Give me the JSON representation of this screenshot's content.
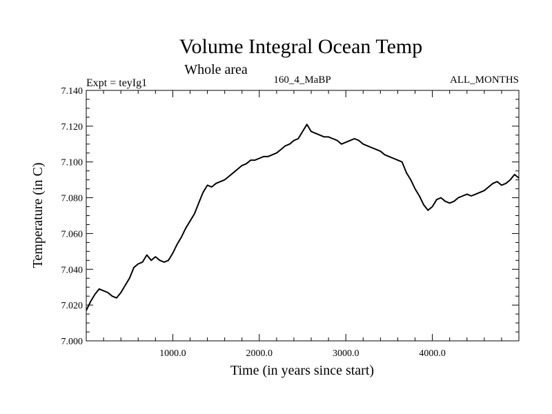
{
  "chart_data": {
    "type": "line",
    "title": "Volume Integral Ocean Temp",
    "subtitle": "Whole area",
    "header_left": "Expt = teyIg1",
    "header_center": "160_4_MaBP",
    "header_right": "ALL_MONTHS",
    "xlabel": "Time (in years since start)",
    "ylabel": "Temperature (in C)",
    "xlim": [
      0,
      5000
    ],
    "ylim": [
      7.0,
      7.14
    ],
    "x_ticks": [
      1000,
      2000,
      3000,
      4000
    ],
    "x_tick_labels": [
      "1000.0",
      "2000.0",
      "3000.0",
      "4000.0"
    ],
    "y_ticks": [
      7.0,
      7.02,
      7.04,
      7.06,
      7.08,
      7.1,
      7.12,
      7.14
    ],
    "y_tick_labels": [
      "7.000",
      "7.020",
      "7.040",
      "7.060",
      "7.080",
      "7.100",
      "7.120",
      "7.140"
    ],
    "grid": false,
    "line_color": "#000000",
    "series": [
      {
        "name": "Volume Integral Ocean Temp",
        "x": [
          0,
          50,
          100,
          150,
          200,
          250,
          300,
          350,
          400,
          450,
          500,
          550,
          600,
          650,
          700,
          750,
          800,
          850,
          900,
          950,
          1000,
          1050,
          1100,
          1150,
          1200,
          1250,
          1300,
          1350,
          1400,
          1450,
          1500,
          1550,
          1600,
          1650,
          1700,
          1750,
          1800,
          1850,
          1900,
          1950,
          2000,
          2050,
          2100,
          2150,
          2200,
          2250,
          2300,
          2350,
          2400,
          2450,
          2500,
          2550,
          2600,
          2650,
          2700,
          2750,
          2800,
          2850,
          2900,
          2950,
          3000,
          3050,
          3100,
          3150,
          3200,
          3250,
          3300,
          3350,
          3400,
          3450,
          3500,
          3550,
          3600,
          3650,
          3700,
          3750,
          3800,
          3850,
          3900,
          3950,
          4000,
          4050,
          4100,
          4150,
          4200,
          4250,
          4300,
          4350,
          4400,
          4450,
          4500,
          4550,
          4600,
          4650,
          4700,
          4750,
          4800,
          4850,
          4900,
          4950,
          5000
        ],
        "y": [
          7.017,
          7.022,
          7.026,
          7.029,
          7.028,
          7.027,
          7.025,
          7.024,
          7.027,
          7.031,
          7.035,
          7.041,
          7.043,
          7.044,
          7.048,
          7.045,
          7.047,
          7.045,
          7.044,
          7.045,
          7.049,
          7.054,
          7.058,
          7.063,
          7.067,
          7.071,
          7.077,
          7.083,
          7.087,
          7.086,
          7.088,
          7.089,
          7.09,
          7.092,
          7.094,
          7.096,
          7.098,
          7.099,
          7.101,
          7.101,
          7.102,
          7.103,
          7.103,
          7.104,
          7.105,
          7.107,
          7.109,
          7.11,
          7.112,
          7.113,
          7.117,
          7.121,
          7.117,
          7.116,
          7.115,
          7.114,
          7.114,
          7.113,
          7.112,
          7.11,
          7.111,
          7.112,
          7.113,
          7.112,
          7.11,
          7.109,
          7.108,
          7.107,
          7.106,
          7.104,
          7.103,
          7.102,
          7.101,
          7.1,
          7.094,
          7.09,
          7.085,
          7.081,
          7.076,
          7.073,
          7.075,
          7.079,
          7.08,
          7.078,
          7.077,
          7.078,
          7.08,
          7.081,
          7.082,
          7.081,
          7.082,
          7.083,
          7.084,
          7.086,
          7.088,
          7.089,
          7.087,
          7.088,
          7.09,
          7.093,
          7.091
        ]
      }
    ]
  }
}
